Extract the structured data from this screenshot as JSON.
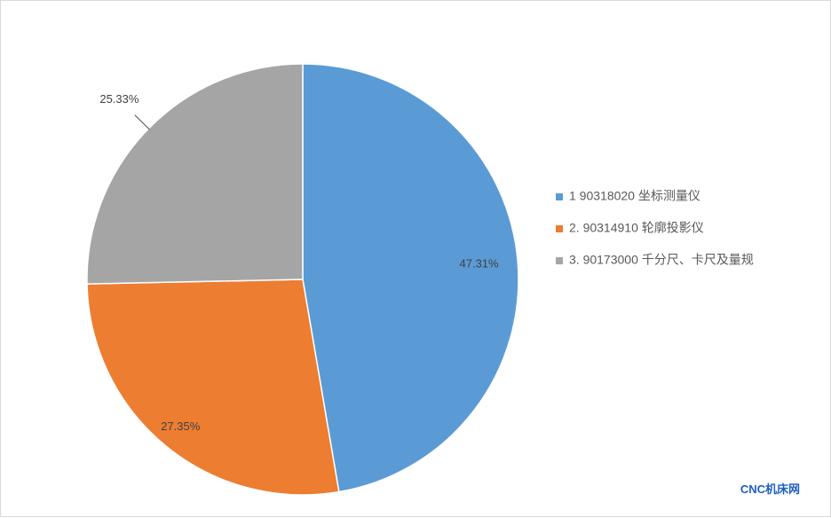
{
  "chart_data": {
    "type": "pie",
    "title": "",
    "categories": [
      "1 90318020 坐标测量仪",
      "2. 90314910 轮廓投影仪",
      "3. 90173000 千分尺、卡尺及量规"
    ],
    "values": [
      47.31,
      27.35,
      25.33
    ],
    "data_labels": [
      "47.31%",
      "27.35%",
      "25.33%"
    ],
    "colors": [
      "#5B9BD5",
      "#ED7D31",
      "#A5A5A5"
    ],
    "legend": {
      "position": "right"
    }
  },
  "watermark": "CNC机床网"
}
